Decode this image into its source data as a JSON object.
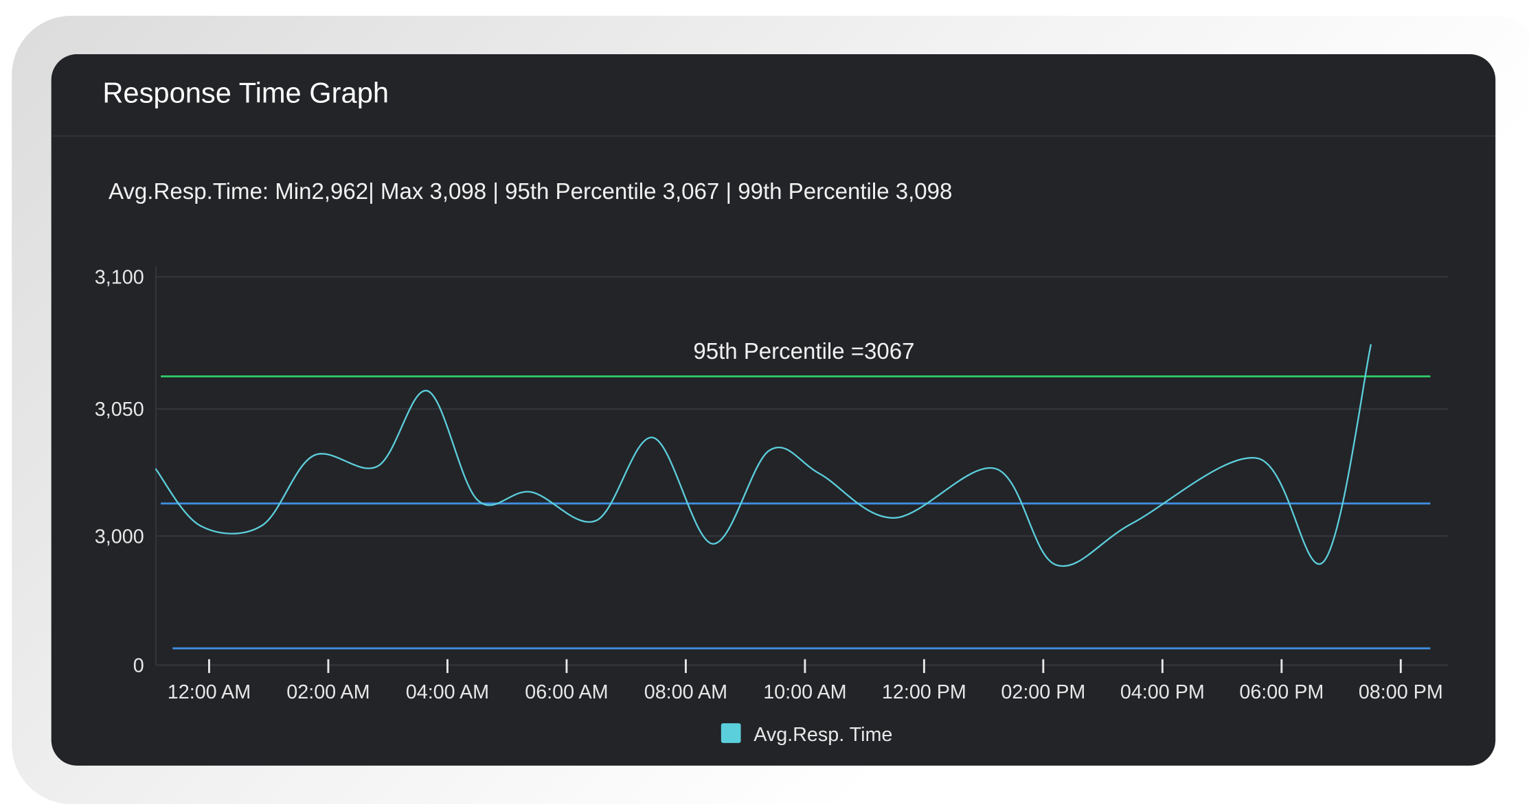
{
  "card": {
    "title": "Response Time Graph",
    "summary": "Avg.Resp.Time: Min2,962| Max 3,098 | 95th Percentile 3,067 | 99th Percentile 3,098"
  },
  "chart_data": {
    "type": "line",
    "title": "",
    "xlabel": "",
    "ylabel": "",
    "y_ticks": [
      "3,100",
      "3,050",
      "3,000",
      "0"
    ],
    "y_tick_values": [
      3100,
      3050,
      3000,
      0
    ],
    "x_ticks": [
      "12:00 AM",
      "02:00 AM",
      "04:00 AM",
      "06:00 AM",
      "08:00 AM",
      "10:00 AM",
      "12:00 PM",
      "02:00 PM",
      "04:00 PM",
      "06:00 PM",
      "08:00 PM"
    ],
    "grid": true,
    "legend_position": "bottom",
    "series": [
      {
        "name": "Avg.Resp. Time",
        "color": "#5ccfdc",
        "x": [
          "23:06",
          "23:51",
          "00:53",
          "01:45",
          "02:50",
          "03:40",
          "04:30",
          "05:24",
          "06:30",
          "07:27",
          "08:27",
          "09:24",
          "10:15",
          "11:30",
          "13:12",
          "14:12",
          "15:30",
          "17:36",
          "18:42",
          "19:30"
        ],
        "y": [
          3026,
          3004,
          3004,
          3031,
          3027,
          3056,
          3014,
          3017,
          3006,
          3038,
          2997,
          3033,
          3024,
          3007,
          3026,
          2989,
          3005,
          3030,
          2990,
          3074
        ]
      }
    ],
    "reference_lines": [
      {
        "label": "95th Percentile =3067",
        "value": 3067,
        "color": "#2fc868"
      },
      {
        "value": 3012,
        "color": "#3f8fe0"
      },
      {
        "value": 2962,
        "color": "#3f8fe0"
      }
    ]
  },
  "colors": {
    "card_bg": "#232428",
    "grid": "#34353a"
  }
}
